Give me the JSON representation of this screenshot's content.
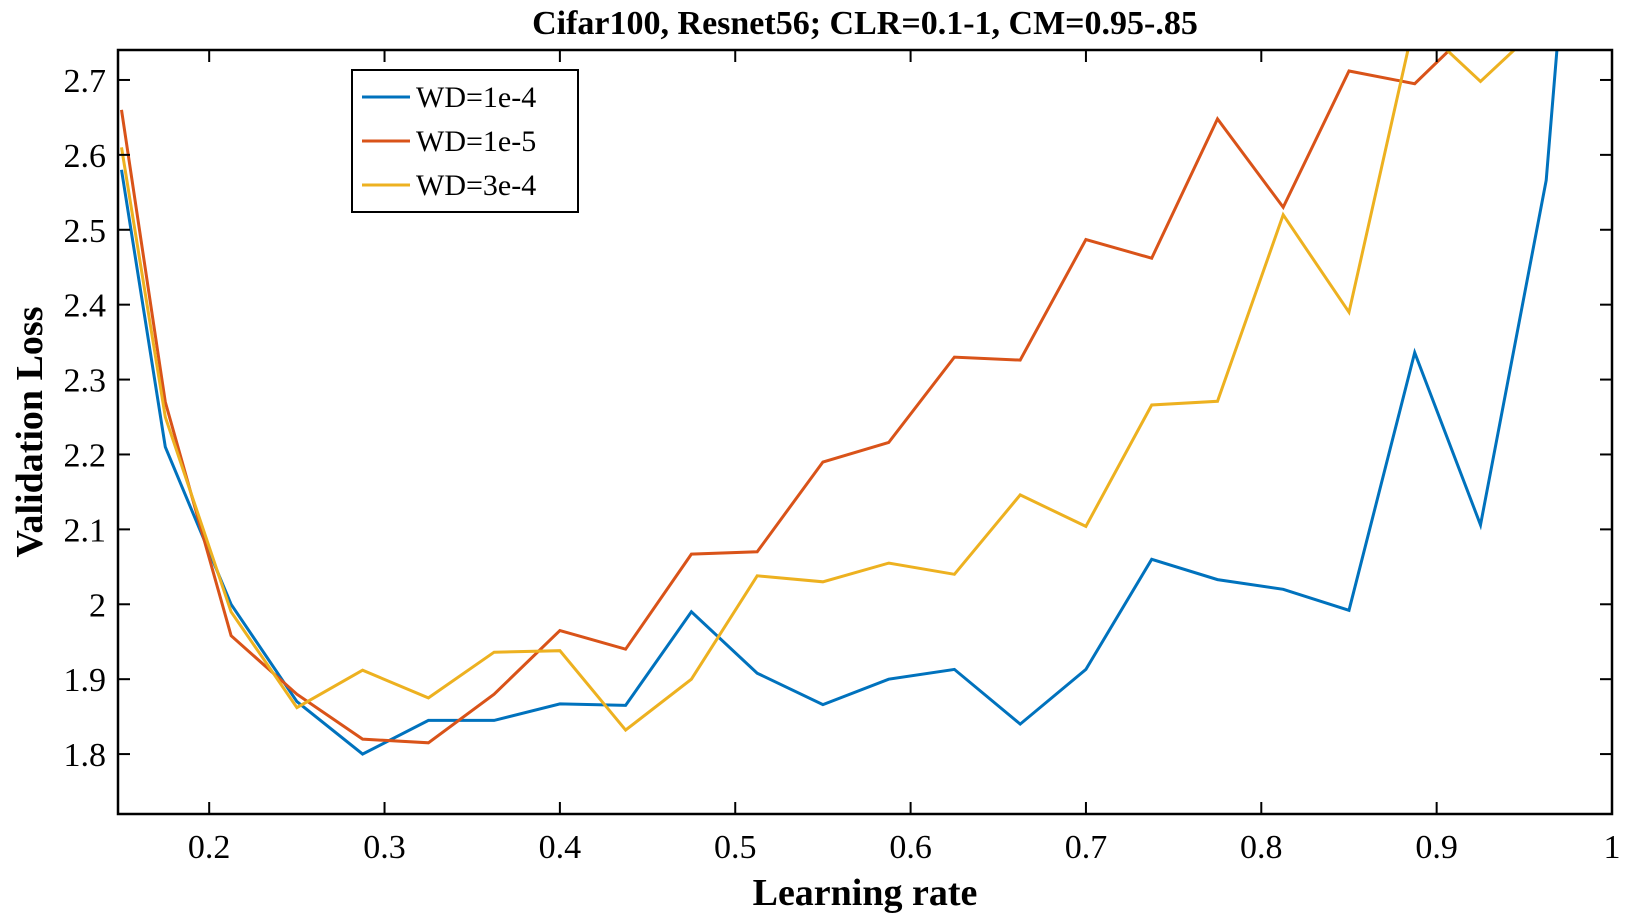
{
  "chart_data": {
    "type": "line",
    "title": "Cifar100, Resnet56; CLR=0.1-1, CM=0.95-.85",
    "xlabel": "Learning rate",
    "ylabel": "Validation Loss",
    "xlim": [
      0.148,
      1.0
    ],
    "ylim": [
      1.72,
      2.74
    ],
    "xticks": [
      0.2,
      0.3,
      0.4,
      0.5,
      0.6,
      0.7,
      0.8,
      0.9,
      1
    ],
    "xtick_labels": [
      "0.2",
      "0.3",
      "0.4",
      "0.5",
      "0.6",
      "0.7",
      "0.8",
      "0.9",
      "1"
    ],
    "yticks": [
      1.8,
      1.9,
      2.0,
      2.1,
      2.2,
      2.3,
      2.4,
      2.5,
      2.6,
      2.7
    ],
    "ytick_labels": [
      "1.8",
      "1.9",
      "2",
      "2.1",
      "2.2",
      "2.3",
      "2.4",
      "2.5",
      "2.6",
      "2.7"
    ],
    "grid": false,
    "legend_position": "top-left",
    "x": [
      0.15,
      0.175,
      0.2125,
      0.25,
      0.2875,
      0.325,
      0.3625,
      0.4,
      0.4375,
      0.475,
      0.5125,
      0.55,
      0.5875,
      0.625,
      0.6625,
      0.7,
      0.7375,
      0.775,
      0.8125,
      0.85,
      0.8875,
      0.925,
      0.9625,
      0.97
    ],
    "series": [
      {
        "name": "WD=1e-4",
        "color": "#0072BD",
        "values": [
          2.58,
          2.21,
          2.0,
          1.87,
          1.8,
          1.845,
          1.845,
          1.867,
          1.865,
          1.99,
          1.908,
          1.866,
          1.9,
          1.913,
          1.84,
          1.913,
          2.06,
          2.033,
          2.02,
          1.992,
          2.336,
          2.106,
          2.566,
          2.78
        ]
      },
      {
        "name": "WD=1e-5",
        "color": "#D95319",
        "values": [
          2.66,
          2.27,
          1.958,
          1.88,
          1.82,
          1.815,
          1.88,
          1.965,
          1.94,
          2.067,
          2.07,
          2.19,
          2.216,
          2.33,
          2.326,
          2.487,
          2.462,
          2.648,
          2.53,
          2.712,
          2.695,
          2.78,
          2.78,
          2.78
        ]
      },
      {
        "name": "WD=3e-4",
        "color": "#EDB120",
        "values": [
          2.61,
          2.25,
          1.99,
          1.862,
          1.912,
          1.875,
          1.936,
          1.938,
          1.832,
          1.9,
          2.038,
          2.03,
          2.055,
          2.04,
          2.146,
          2.104,
          2.266,
          2.271,
          2.52,
          2.39,
          2.78,
          2.698,
          2.78,
          2.78
        ]
      }
    ]
  }
}
